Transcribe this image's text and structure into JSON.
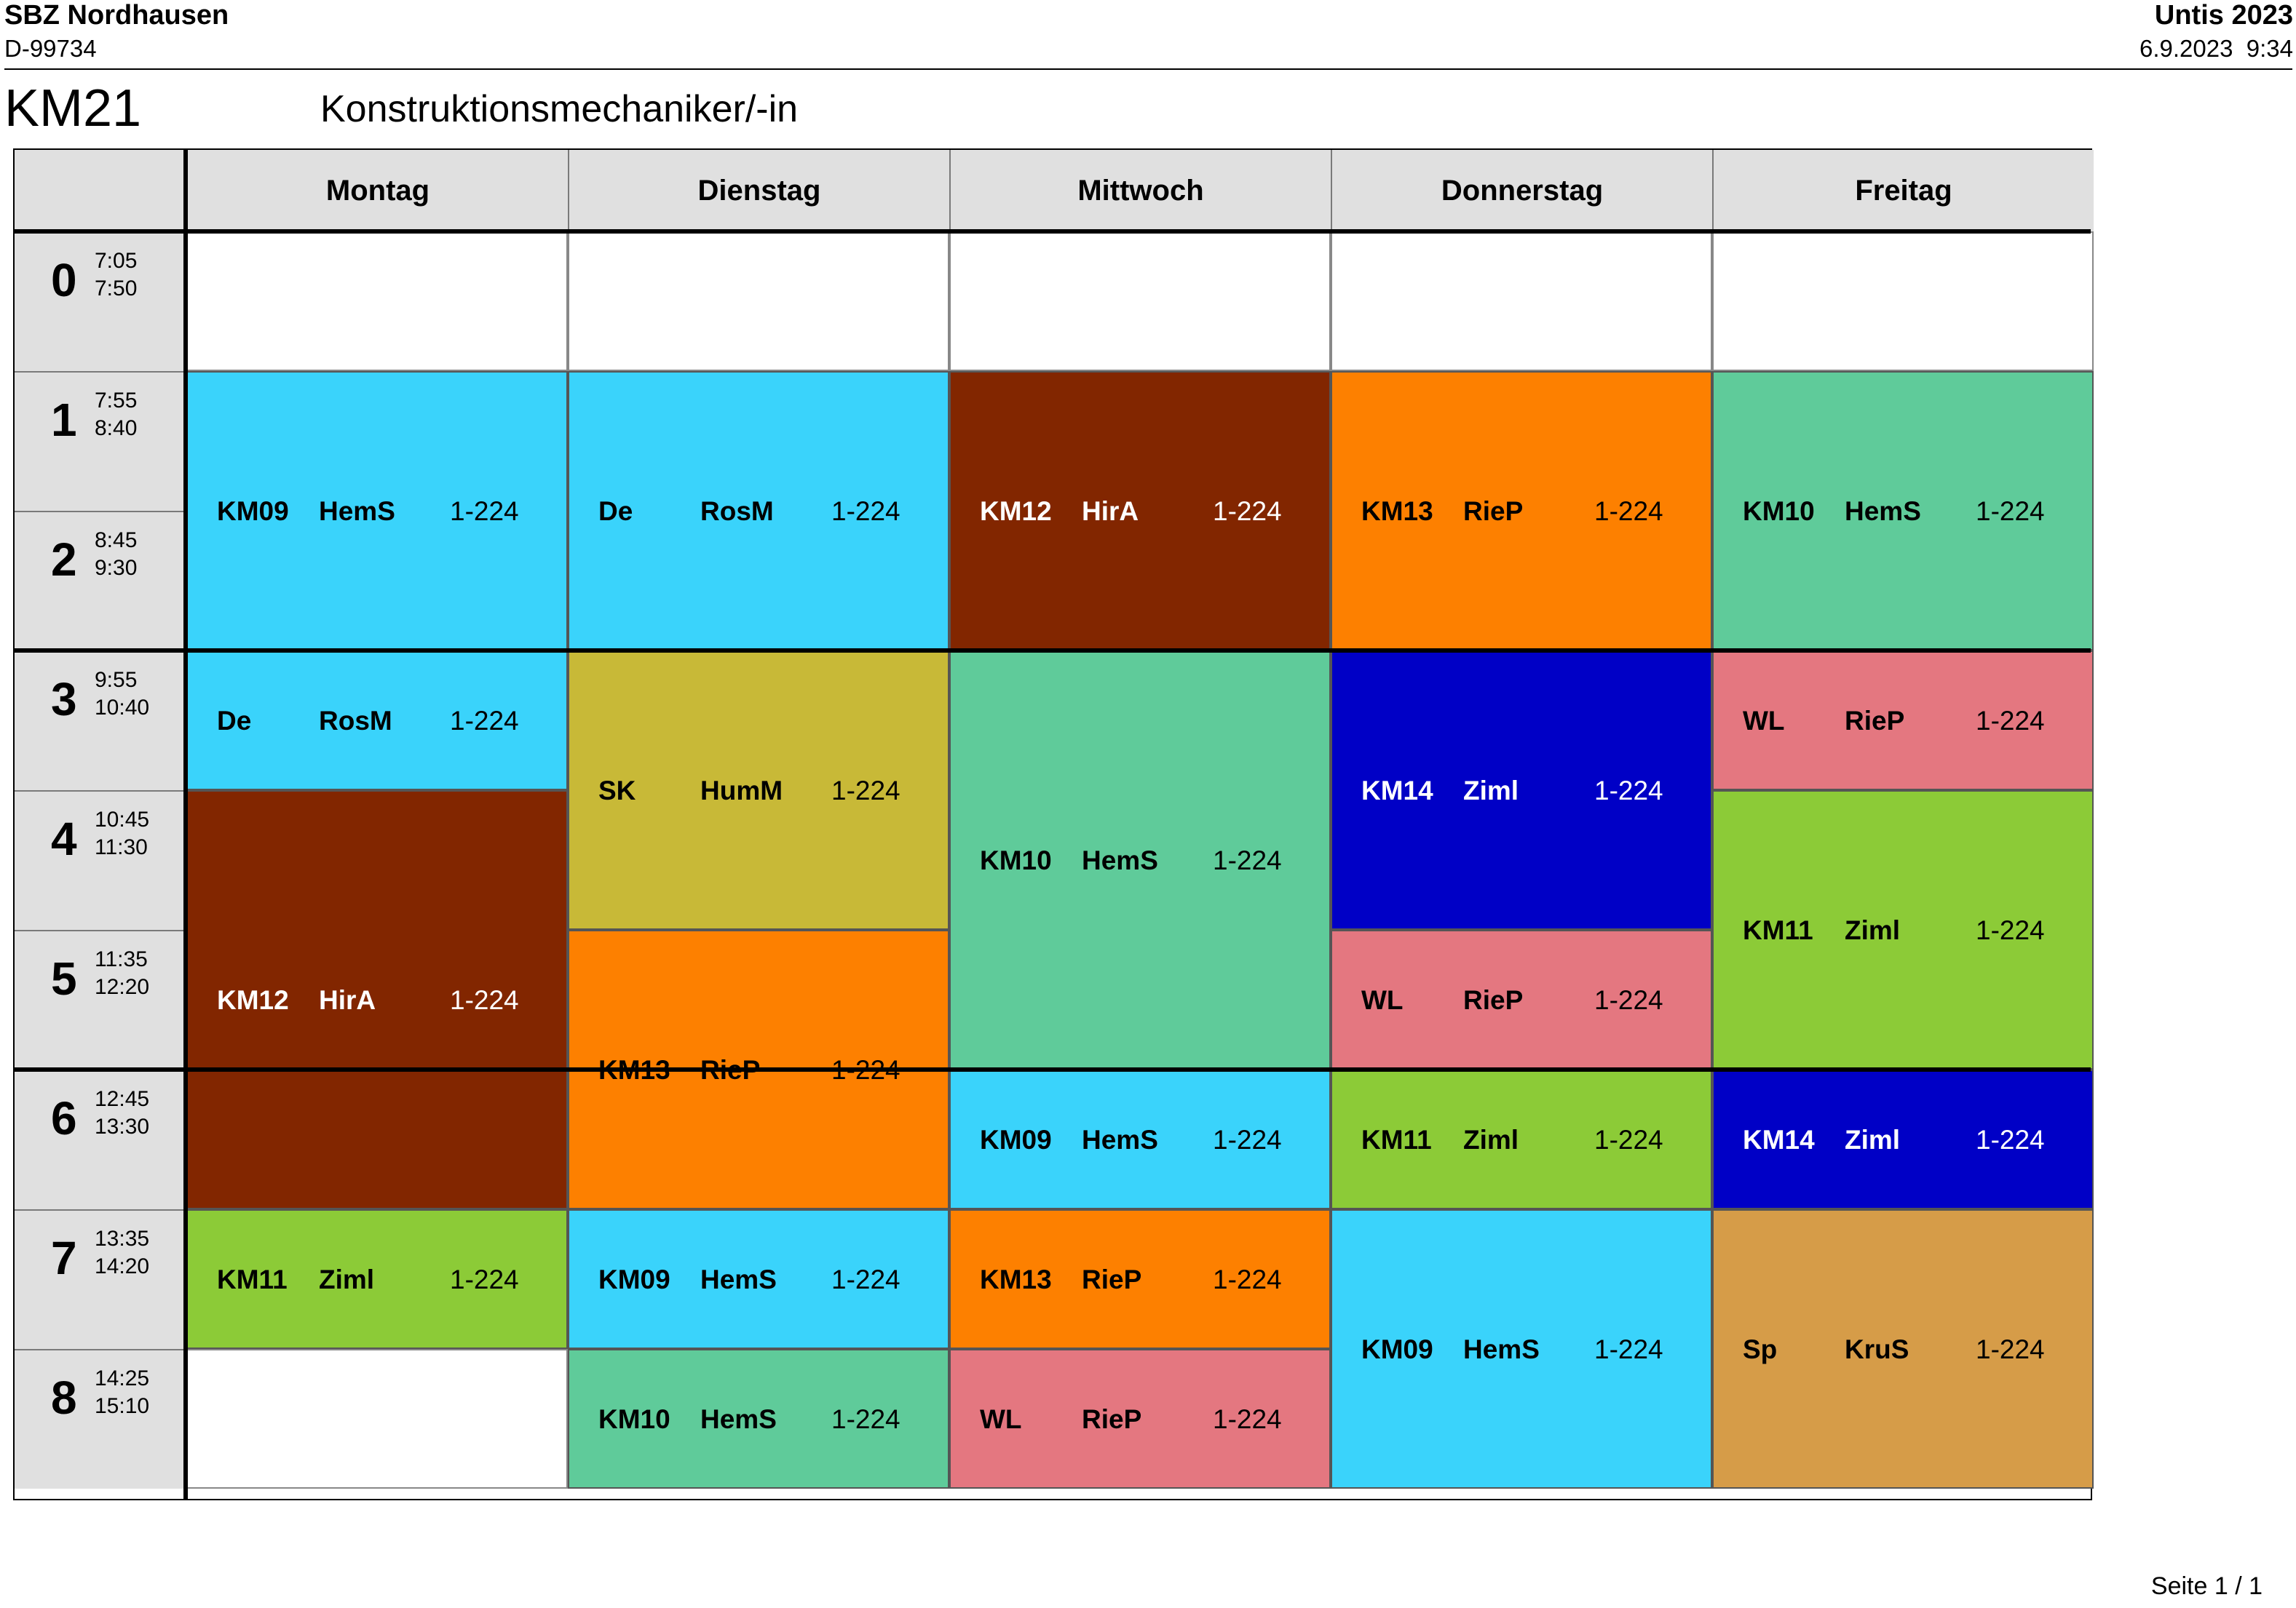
{
  "header": {
    "school": "SBZ Nordhausen",
    "id": "D-99734",
    "app": "Untis 2023",
    "datetime": "6.9.2023  9:34"
  },
  "class_code": "KM21",
  "class_name": "Konstruktionsmechaniker/-in",
  "days": [
    "Montag",
    "Dienstag",
    "Mittwoch",
    "Donnerstag",
    "Freitag"
  ],
  "periods": [
    {
      "num": "0",
      "start": "7:05",
      "end": "7:50"
    },
    {
      "num": "1",
      "start": "7:55",
      "end": "8:40"
    },
    {
      "num": "2",
      "start": "8:45",
      "end": "9:30"
    },
    {
      "num": "3",
      "start": "9:55",
      "end": "10:40"
    },
    {
      "num": "4",
      "start": "10:45",
      "end": "11:30"
    },
    {
      "num": "5",
      "start": "11:35",
      "end": "12:20"
    },
    {
      "num": "6",
      "start": "12:45",
      "end": "13:30"
    },
    {
      "num": "7",
      "start": "13:35",
      "end": "14:20"
    },
    {
      "num": "8",
      "start": "14:25",
      "end": "15:10"
    }
  ],
  "lessons": [
    {
      "day": 0,
      "start": 1,
      "span": 2,
      "subject": "KM09",
      "teacher": "HemS",
      "room": "1-224",
      "color": "#3ad3fb",
      "text": "#000"
    },
    {
      "day": 0,
      "start": 3,
      "span": 1,
      "subject": "De",
      "teacher": "RosM",
      "room": "1-224",
      "color": "#3ad3fb",
      "text": "#000"
    },
    {
      "day": 0,
      "start": 4,
      "span": 3,
      "subject": "KM12",
      "teacher": "HirA",
      "room": "1-224",
      "color": "#822600",
      "text": "#fff"
    },
    {
      "day": 0,
      "start": 7,
      "span": 1,
      "subject": "KM11",
      "teacher": "Ziml",
      "room": "1-224",
      "color": "#8ccb37",
      "text": "#000"
    },
    {
      "day": 1,
      "start": 1,
      "span": 2,
      "subject": "De",
      "teacher": "RosM",
      "room": "1-224",
      "color": "#3ad3fb",
      "text": "#000"
    },
    {
      "day": 1,
      "start": 3,
      "span": 2,
      "subject": "SK",
      "teacher": "HumM",
      "room": "1-224",
      "color": "#c8b937",
      "text": "#000"
    },
    {
      "day": 1,
      "start": 5,
      "span": 2,
      "subject": "KM13",
      "teacher": "RieP",
      "room": "1-224",
      "color": "#fd8000",
      "text": "#000"
    },
    {
      "day": 1,
      "start": 7,
      "span": 1,
      "subject": "KM09",
      "teacher": "HemS",
      "room": "1-224",
      "color": "#3ad3fb",
      "text": "#000"
    },
    {
      "day": 1,
      "start": 8,
      "span": 1,
      "subject": "KM10",
      "teacher": "HemS",
      "room": "1-224",
      "color": "#5fcb9a",
      "text": "#000"
    },
    {
      "day": 2,
      "start": 1,
      "span": 2,
      "subject": "KM12",
      "teacher": "HirA",
      "room": "1-224",
      "color": "#822600",
      "text": "#fff"
    },
    {
      "day": 2,
      "start": 3,
      "span": 3,
      "subject": "KM10",
      "teacher": "HemS",
      "room": "1-224",
      "color": "#5fcb9a",
      "text": "#000"
    },
    {
      "day": 2,
      "start": 6,
      "span": 1,
      "subject": "KM09",
      "teacher": "HemS",
      "room": "1-224",
      "color": "#3ad3fb",
      "text": "#000"
    },
    {
      "day": 2,
      "start": 7,
      "span": 1,
      "subject": "KM13",
      "teacher": "RieP",
      "room": "1-224",
      "color": "#fd8000",
      "text": "#000"
    },
    {
      "day": 2,
      "start": 8,
      "span": 1,
      "subject": "WL",
      "teacher": "RieP",
      "room": "1-224",
      "color": "#e47780",
      "text": "#000"
    },
    {
      "day": 3,
      "start": 1,
      "span": 2,
      "subject": "KM13",
      "teacher": "RieP",
      "room": "1-224",
      "color": "#fd8000",
      "text": "#000"
    },
    {
      "day": 3,
      "start": 3,
      "span": 2,
      "subject": "KM14",
      "teacher": "Ziml",
      "room": "1-224",
      "color": "#0000c6",
      "text": "#fff"
    },
    {
      "day": 3,
      "start": 5,
      "span": 1,
      "subject": "WL",
      "teacher": "RieP",
      "room": "1-224",
      "color": "#e47780",
      "text": "#000"
    },
    {
      "day": 3,
      "start": 6,
      "span": 1,
      "subject": "KM11",
      "teacher": "Ziml",
      "room": "1-224",
      "color": "#8ccb37",
      "text": "#000"
    },
    {
      "day": 3,
      "start": 7,
      "span": 2,
      "subject": "KM09",
      "teacher": "HemS",
      "room": "1-224",
      "color": "#3ad3fb",
      "text": "#000"
    },
    {
      "day": 4,
      "start": 1,
      "span": 2,
      "subject": "KM10",
      "teacher": "HemS",
      "room": "1-224",
      "color": "#5fcb9a",
      "text": "#000"
    },
    {
      "day": 4,
      "start": 3,
      "span": 1,
      "subject": "WL",
      "teacher": "RieP",
      "room": "1-224",
      "color": "#e47780",
      "text": "#000"
    },
    {
      "day": 4,
      "start": 4,
      "span": 2,
      "subject": "KM11",
      "teacher": "Ziml",
      "room": "1-224",
      "color": "#8ccb37",
      "text": "#000"
    },
    {
      "day": 4,
      "start": 6,
      "span": 1,
      "subject": "KM14",
      "teacher": "Ziml",
      "room": "1-224",
      "color": "#0000c6",
      "text": "#fff"
    },
    {
      "day": 4,
      "start": 7,
      "span": 2,
      "subject": "Sp",
      "teacher": "KruS",
      "room": "1-224",
      "color": "#d69c48",
      "text": "#000"
    }
  ],
  "footer": "Seite 1 / 1"
}
